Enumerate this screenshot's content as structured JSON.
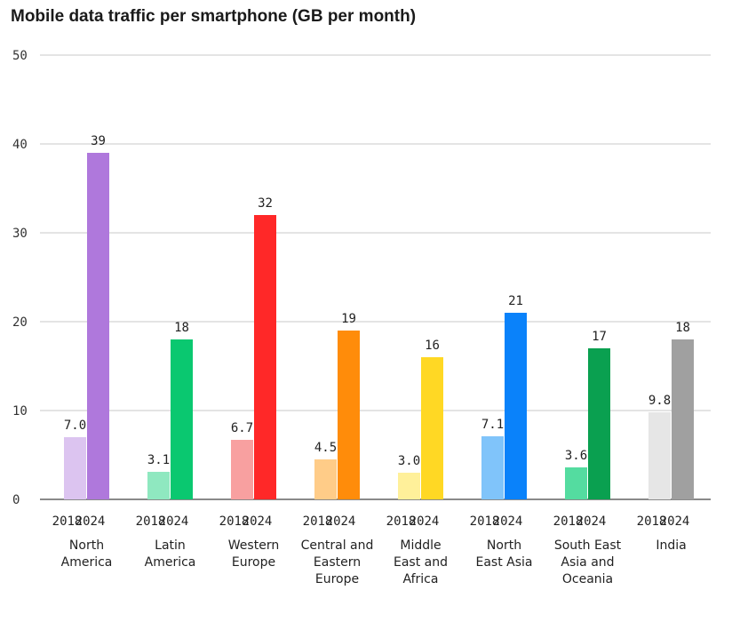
{
  "chart_data": {
    "type": "bar",
    "title": "Mobile data traffic per smartphone (GB per month)",
    "ylim": [
      0,
      50
    ],
    "yticks": [
      "0",
      "10",
      "20",
      "30",
      "40",
      "50"
    ],
    "grid": true,
    "groups": [
      {
        "region": [
          "North",
          "America"
        ],
        "years": [
          "2018",
          "2024"
        ],
        "values": [
          7.0,
          39
        ],
        "labels": [
          "7.0",
          "39"
        ],
        "colors": [
          "#dcc4f0",
          "#af78dc"
        ]
      },
      {
        "region": [
          "Latin",
          "America"
        ],
        "years": [
          "2018",
          "2024"
        ],
        "values": [
          3.1,
          18
        ],
        "labels": [
          "3.1",
          "18"
        ],
        "colors": [
          "#8fe8c0",
          "#0ac870"
        ]
      },
      {
        "region": [
          "Western",
          "Europe"
        ],
        "years": [
          "2018",
          "2024"
        ],
        "values": [
          6.7,
          32
        ],
        "labels": [
          "6.7",
          "32"
        ],
        "colors": [
          "#f8a0a0",
          "#ff2828"
        ]
      },
      {
        "region": [
          "Central and",
          "Eastern",
          "Europe"
        ],
        "years": [
          "2018",
          "2024"
        ],
        "values": [
          4.5,
          19
        ],
        "labels": [
          "4.5",
          "19"
        ],
        "colors": [
          "#ffcc88",
          "#ff8c0a"
        ]
      },
      {
        "region": [
          "Middle",
          "East and",
          "Africa"
        ],
        "years": [
          "2018",
          "2024"
        ],
        "values": [
          3.0,
          16
        ],
        "labels": [
          "3.0",
          "16"
        ],
        "colors": [
          "#fff09a",
          "#ffd824"
        ]
      },
      {
        "region": [
          "North",
          "East Asia"
        ],
        "years": [
          "2018",
          "2024"
        ],
        "values": [
          7.1,
          21
        ],
        "labels": [
          "7.1",
          "21"
        ],
        "colors": [
          "#80c4fa",
          "#0a82fa"
        ]
      },
      {
        "region": [
          "South East",
          "Asia and",
          "Oceania"
        ],
        "years": [
          "2018",
          "2024"
        ],
        "values": [
          3.6,
          17
        ],
        "labels": [
          "3.6",
          "17"
        ],
        "colors": [
          "#54dca0",
          "#0aa050"
        ]
      },
      {
        "region": [
          "India"
        ],
        "years": [
          "2018",
          "2024"
        ],
        "values": [
          9.8,
          18
        ],
        "labels": [
          "9.8",
          "18"
        ],
        "colors": [
          "#e6e6e6",
          "#a0a0a0"
        ]
      }
    ]
  }
}
